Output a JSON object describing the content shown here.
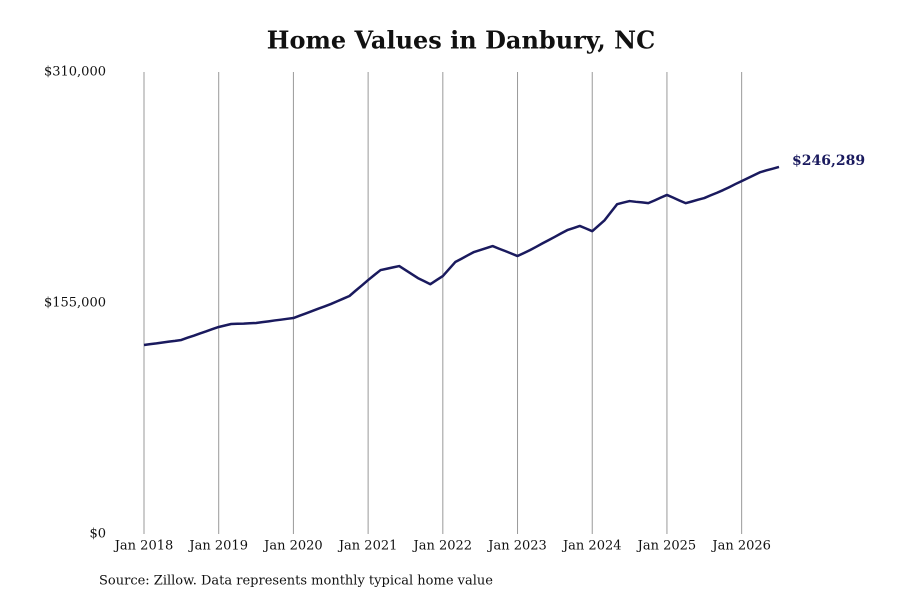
{
  "chart_data": {
    "type": "line",
    "title": "Home Values in Danbury, NC",
    "source": "Source: Zillow. Data represents monthly typical home value",
    "x": [
      "2018-01",
      "2018-02",
      "2018-03",
      "2018-04",
      "2018-05",
      "2018-06",
      "2018-07",
      "2018-08",
      "2018-09",
      "2018-10",
      "2018-11",
      "2018-12",
      "2019-01",
      "2019-02",
      "2019-03",
      "2019-04",
      "2019-05",
      "2019-06",
      "2019-07",
      "2019-08",
      "2019-09",
      "2019-10",
      "2019-11",
      "2019-12",
      "2020-01",
      "2020-02",
      "2020-03",
      "2020-04",
      "2020-05",
      "2020-06",
      "2020-07",
      "2020-08",
      "2020-09",
      "2020-10",
      "2020-11",
      "2020-12",
      "2021-01",
      "2021-02",
      "2021-03",
      "2021-04",
      "2021-05",
      "2021-06",
      "2021-07",
      "2021-08",
      "2021-09",
      "2021-10",
      "2021-11",
      "2021-12",
      "2022-01",
      "2022-02",
      "2022-03",
      "2022-04",
      "2022-05",
      "2022-06",
      "2022-07",
      "2022-08",
      "2022-09",
      "2022-10",
      "2022-11",
      "2022-12",
      "2023-01",
      "2023-02",
      "2023-03",
      "2023-04",
      "2023-05",
      "2023-06",
      "2023-07",
      "2023-08",
      "2023-09",
      "2023-10",
      "2023-11",
      "2023-12",
      "2024-01",
      "2024-02",
      "2024-03",
      "2024-04",
      "2024-05",
      "2024-06",
      "2024-07",
      "2024-08",
      "2024-09",
      "2024-10",
      "2024-11",
      "2024-12",
      "2025-01",
      "2025-02",
      "2025-03",
      "2025-04",
      "2025-05",
      "2025-06",
      "2025-07",
      "2025-08",
      "2025-09",
      "2025-10",
      "2025-11",
      "2025-12",
      "2026-01",
      "2026-02",
      "2026-03",
      "2026-04",
      "2026-05",
      "2026-06",
      "2026-07"
    ],
    "series": [
      {
        "name": "Home value",
        "color": "#1a1a5e",
        "values": [
          126800,
          127400,
          127900,
          128500,
          129100,
          129600,
          130200,
          131700,
          133100,
          134600,
          136000,
          137500,
          138900,
          139900,
          140900,
          141100,
          141200,
          141400,
          141600,
          142200,
          142700,
          143300,
          143800,
          144400,
          144900,
          146500,
          148000,
          149600,
          151200,
          152700,
          154300,
          156100,
          157900,
          159700,
          163300,
          166800,
          170400,
          173800,
          177100,
          178000,
          178900,
          179800,
          177100,
          174400,
          171700,
          169700,
          167600,
          170400,
          173100,
          177800,
          182500,
          184700,
          187000,
          189200,
          190500,
          191900,
          193200,
          191500,
          189900,
          188200,
          186500,
          188500,
          190500,
          192700,
          195000,
          197200,
          199400,
          201700,
          203900,
          205300,
          206700,
          205000,
          203200,
          206900,
          210600,
          216000,
          221300,
          222400,
          223400,
          222900,
          222500,
          222000,
          223800,
          225700,
          227500,
          225700,
          223800,
          222000,
          223100,
          224300,
          225400,
          227200,
          228900,
          230700,
          232700,
          234800,
          236800,
          238800,
          240800,
          242800,
          244000,
          245100,
          246289
        ],
        "value_labels": [
          null,
          null,
          null,
          null,
          null,
          null,
          null,
          null,
          null,
          null,
          null,
          null,
          null,
          null,
          null,
          null,
          null,
          null,
          null,
          null,
          null,
          null,
          null,
          null,
          null,
          null,
          null,
          null,
          null,
          null,
          null,
          null,
          null,
          null,
          null,
          null,
          null,
          null,
          null,
          null,
          null,
          null,
          null,
          null,
          null,
          null,
          null,
          null,
          null,
          null,
          null,
          null,
          null,
          null,
          null,
          null,
          null,
          null,
          null,
          null,
          null,
          null,
          null,
          null,
          null,
          null,
          null,
          null,
          null,
          null,
          null,
          null,
          null,
          null,
          null,
          null,
          null,
          null,
          null,
          null,
          null,
          null,
          null,
          null,
          null,
          null,
          null,
          null,
          null,
          null,
          null,
          null,
          null,
          null,
          null,
          null,
          null,
          null,
          null,
          null,
          null,
          null,
          "$246,289"
        ]
      }
    ],
    "xlim": [
      "2018-01",
      "2026-07"
    ],
    "xticks": [
      {
        "value": "2018-01",
        "label": "Jan 2018"
      },
      {
        "value": "2019-01",
        "label": "Jan 2019"
      },
      {
        "value": "2020-01",
        "label": "Jan 2020"
      },
      {
        "value": "2021-01",
        "label": "Jan 2021"
      },
      {
        "value": "2022-01",
        "label": "Jan 2022"
      },
      {
        "value": "2023-01",
        "label": "Jan 2023"
      },
      {
        "value": "2024-01",
        "label": "Jan 2024"
      },
      {
        "value": "2025-01",
        "label": "Jan 2025"
      },
      {
        "value": "2026-01",
        "label": "Jan 2026"
      }
    ],
    "ylim": [
      0,
      310000
    ],
    "yticks": [
      {
        "value": 0,
        "label": "$0"
      },
      {
        "value": 155000,
        "label": "$155,000"
      },
      {
        "value": 310000,
        "label": "$310,000"
      }
    ],
    "grid": "x"
  }
}
